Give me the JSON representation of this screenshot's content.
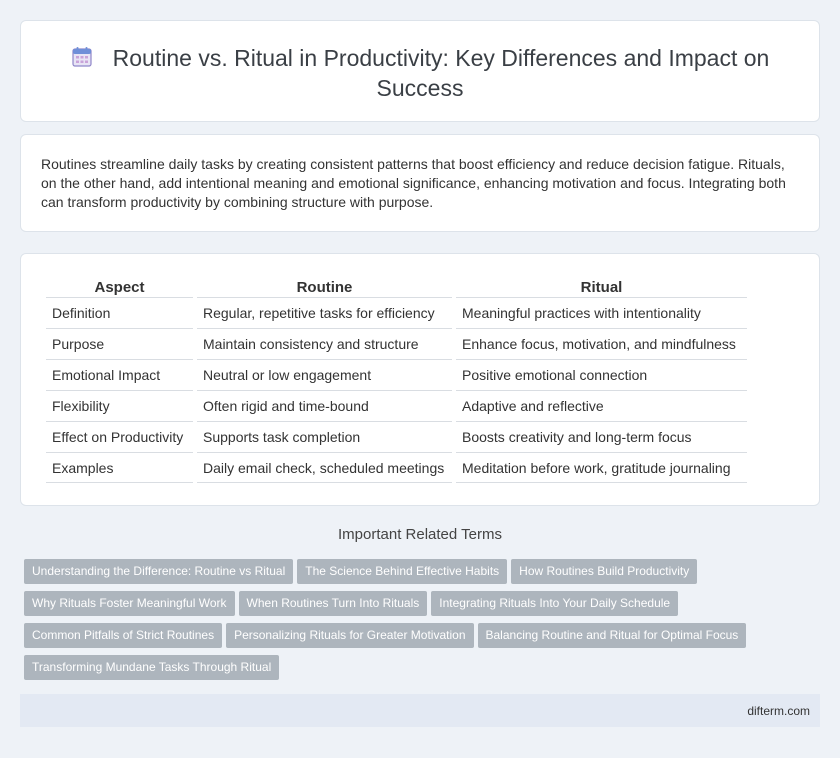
{
  "header": {
    "icon": "calendar-icon",
    "title": "Routine vs. Ritual in Productivity: Key Differences and Impact on Success"
  },
  "intro": {
    "text": "Routines streamline daily tasks by creating consistent patterns that boost efficiency and reduce decision fatigue. Rituals, on the other hand, add intentional meaning and emotional significance, enhancing motivation and focus. Integrating both can transform productivity by combining structure with purpose."
  },
  "table": {
    "headers": [
      "Aspect",
      "Routine",
      "Ritual"
    ],
    "rows": [
      [
        "Definition",
        "Regular, repetitive tasks for efficiency",
        "Meaningful practices with intentionality"
      ],
      [
        "Purpose",
        "Maintain consistency and structure",
        "Enhance focus, motivation, and mindfulness"
      ],
      [
        "Emotional Impact",
        "Neutral or low engagement",
        "Positive emotional connection"
      ],
      [
        "Flexibility",
        "Often rigid and time-bound",
        "Adaptive and reflective"
      ],
      [
        "Effect on Productivity",
        "Supports task completion",
        "Boosts creativity and long-term focus"
      ],
      [
        "Examples",
        "Daily email check, scheduled meetings",
        "Meditation before work, gratitude journaling"
      ]
    ]
  },
  "related": {
    "title": "Important Related Terms",
    "tags": [
      "Understanding the Difference: Routine vs Ritual",
      "The Science Behind Effective Habits",
      "How Routines Build Productivity",
      "Why Rituals Foster Meaningful Work",
      "When Routines Turn Into Rituals",
      "Integrating Rituals Into Your Daily Schedule",
      "Common Pitfalls of Strict Routines",
      "Personalizing Rituals for Greater Motivation",
      "Balancing Routine and Ritual for Optimal Focus",
      "Transforming Mundane Tasks Through Ritual"
    ]
  },
  "footer": {
    "site": "difterm.com"
  },
  "colors": {
    "tag_bg": "#adb5bd",
    "page_bg": "#eef2f7",
    "footer_bg": "#e3e9f3"
  }
}
